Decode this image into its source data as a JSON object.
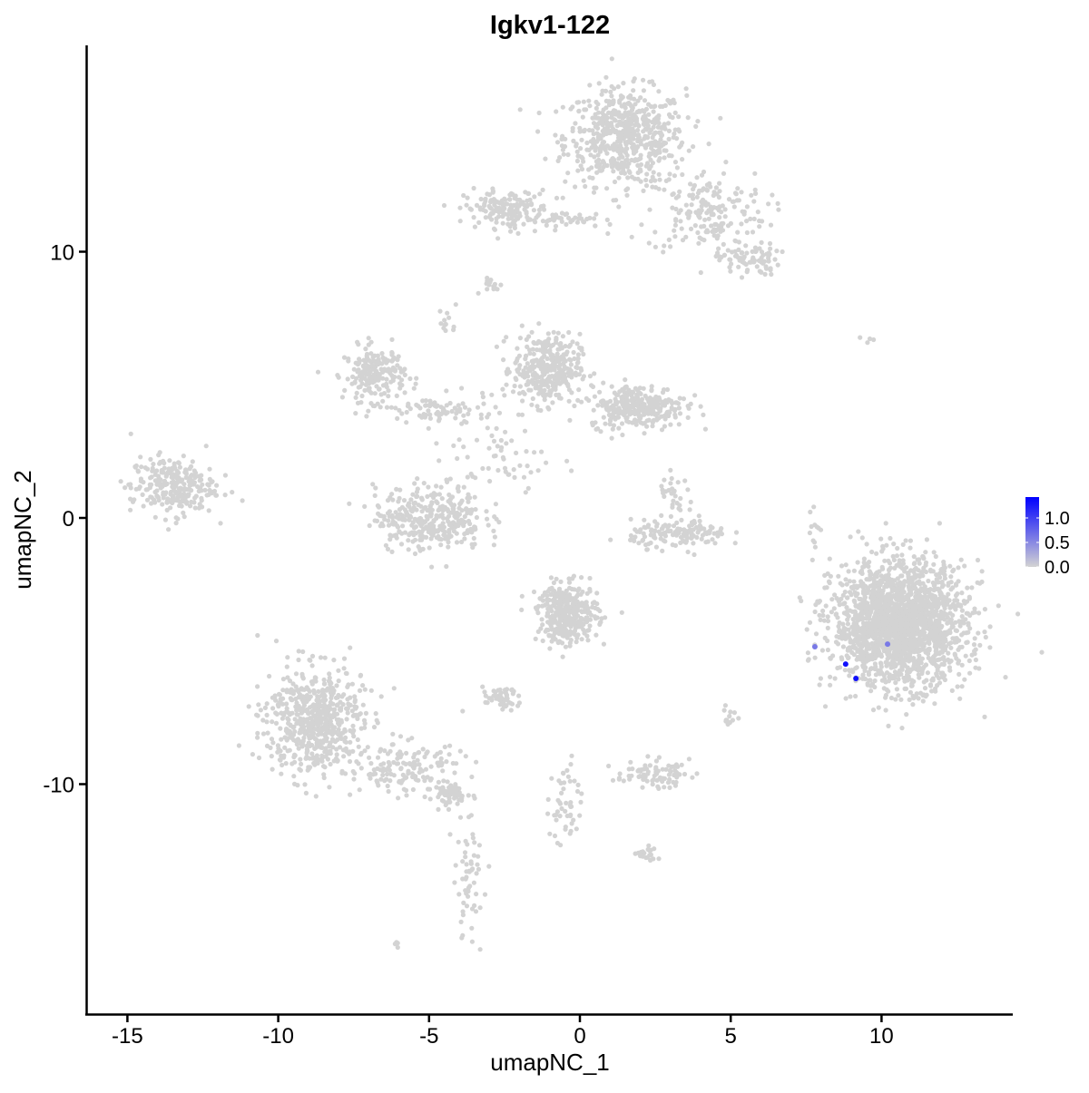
{
  "chart_data": {
    "type": "scatter",
    "title": "Igkv1-122",
    "xlabel": "umapNC_1",
    "ylabel": "umapNC_2",
    "xlim": [
      -16.4,
      14.4
    ],
    "ylim": [
      -18.5,
      17.7
    ],
    "x_ticks": [
      -15,
      -10,
      -5,
      0,
      5,
      10
    ],
    "y_ticks": [
      -10,
      0,
      10
    ],
    "x_tick_labels": [
      "-15",
      "-10",
      "-5",
      "0",
      "5",
      "10"
    ],
    "y_tick_labels": [
      "-10",
      "0",
      "10"
    ],
    "grid": false,
    "legend": {
      "placement": "right",
      "type": "colorbar",
      "range": [
        0,
        1.4
      ],
      "ticks": [
        "0.0",
        "0.5",
        "1.0"
      ],
      "low_color": "#d3d3d3",
      "high_color": "#0000ff"
    },
    "background_cell_value": 0,
    "background_color": "#d3d3d3",
    "background_clusters": [
      {
        "x": 1.5,
        "y": 14.3,
        "sx": 1.0,
        "sy": 0.9,
        "n": 600
      },
      {
        "x": 4.2,
        "y": 11.5,
        "sx": 1.0,
        "sy": 0.8,
        "n": 180
      },
      {
        "x": 5.6,
        "y": 9.7,
        "sx": 0.5,
        "sy": 0.3,
        "n": 80
      },
      {
        "x": -2.4,
        "y": 11.6,
        "sx": 0.7,
        "sy": 0.35,
        "n": 160
      },
      {
        "x": -0.4,
        "y": 11.2,
        "sx": 0.8,
        "sy": 0.15,
        "n": 40
      },
      {
        "x": -2.8,
        "y": 8.7,
        "sx": 0.2,
        "sy": 0.15,
        "n": 15
      },
      {
        "x": -6.8,
        "y": 5.4,
        "sx": 0.5,
        "sy": 0.5,
        "n": 200
      },
      {
        "x": -4.7,
        "y": 4.0,
        "sx": 0.9,
        "sy": 0.3,
        "n": 80
      },
      {
        "x": -1.1,
        "y": 5.6,
        "sx": 0.55,
        "sy": 0.65,
        "n": 350
      },
      {
        "x": 1.9,
        "y": 4.2,
        "sx": 0.8,
        "sy": 0.4,
        "n": 300
      },
      {
        "x": -13.5,
        "y": 1.2,
        "sx": 0.7,
        "sy": 0.55,
        "n": 260
      },
      {
        "x": -5.0,
        "y": 0.0,
        "sx": 0.9,
        "sy": 0.6,
        "n": 350
      },
      {
        "x": -2.6,
        "y": 2.3,
        "sx": 0.9,
        "sy": 0.9,
        "n": 60
      },
      {
        "x": 3.3,
        "y": -0.6,
        "sx": 0.8,
        "sy": 0.25,
        "n": 150
      },
      {
        "x": 3.2,
        "y": 0.8,
        "sx": 0.3,
        "sy": 0.4,
        "n": 30
      },
      {
        "x": 10.6,
        "y": -4.0,
        "sx": 1.1,
        "sy": 1.15,
        "n": 2000
      },
      {
        "x": -0.4,
        "y": -3.6,
        "sx": 0.5,
        "sy": 0.55,
        "n": 350
      },
      {
        "x": -8.8,
        "y": -7.6,
        "sx": 0.8,
        "sy": 1.0,
        "n": 600
      },
      {
        "x": -5.8,
        "y": -9.4,
        "sx": 1.0,
        "sy": 0.5,
        "n": 150
      },
      {
        "x": -4.3,
        "y": -10.4,
        "sx": 0.3,
        "sy": 0.2,
        "n": 60
      },
      {
        "x": -3.7,
        "y": -13.5,
        "sx": 0.25,
        "sy": 1.2,
        "n": 60
      },
      {
        "x": -2.6,
        "y": -6.8,
        "sx": 0.3,
        "sy": 0.2,
        "n": 50
      },
      {
        "x": 2.4,
        "y": -9.6,
        "sx": 0.6,
        "sy": 0.25,
        "n": 80
      },
      {
        "x": -0.5,
        "y": -10.8,
        "sx": 0.25,
        "sy": 0.9,
        "n": 50
      },
      {
        "x": 2.3,
        "y": -12.6,
        "sx": 0.2,
        "sy": 0.15,
        "n": 20
      },
      {
        "x": 5.0,
        "y": -7.5,
        "sx": 0.15,
        "sy": 0.2,
        "n": 12
      },
      {
        "x": 7.8,
        "y": -0.3,
        "sx": 0.1,
        "sy": 0.5,
        "n": 12
      },
      {
        "x": 9.5,
        "y": 6.7,
        "sx": 0.2,
        "sy": 0.1,
        "n": 4
      },
      {
        "x": -6.1,
        "y": -16.0,
        "sx": 0.1,
        "sy": 0.1,
        "n": 4
      },
      {
        "x": -4.4,
        "y": 7.3,
        "sx": 0.15,
        "sy": 0.3,
        "n": 12
      }
    ],
    "expressing_cells": [
      {
        "x": 7.79,
        "y": -4.84,
        "value": 0.6
      },
      {
        "x": 10.2,
        "y": -4.74,
        "value": 0.6
      },
      {
        "x": 8.81,
        "y": -5.49,
        "value": 1.3
      },
      {
        "x": 9.15,
        "y": -6.03,
        "value": 1.3
      }
    ]
  }
}
